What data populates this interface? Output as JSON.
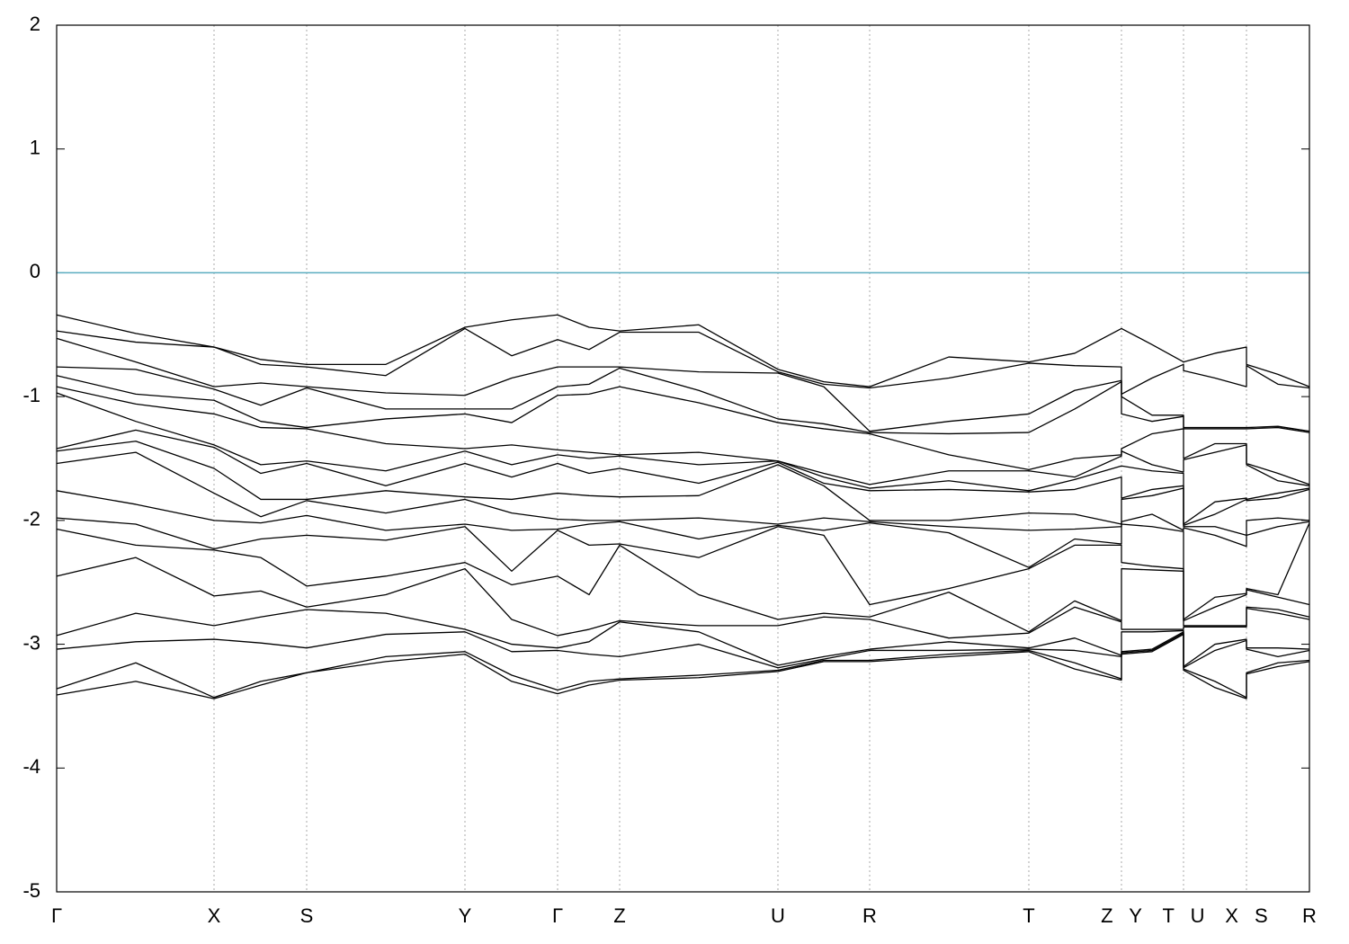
{
  "chart_data": {
    "type": "line",
    "x": [
      0,
      88,
      175,
      227,
      278,
      366,
      454,
      506,
      557,
      592,
      626,
      714,
      802,
      853,
      904,
      992,
      1081,
      1132,
      1184,
      1184,
      1218,
      1253,
      1253,
      1288,
      1323,
      1323,
      1358,
      1393
    ],
    "xlim": [
      0,
      1393
    ],
    "xticks": [
      {
        "value": 0,
        "label": "Γ"
      },
      {
        "value": 175,
        "label": "X"
      },
      {
        "value": 278,
        "label": "S"
      },
      {
        "value": 454,
        "label": "Y"
      },
      {
        "value": 557,
        "label": "Γ"
      },
      {
        "value": 626,
        "label": "Z"
      },
      {
        "value": 802,
        "label": "U"
      },
      {
        "value": 904,
        "label": "R"
      },
      {
        "value": 1081,
        "label": "T"
      },
      {
        "value": 1184,
        "label": "Z Y"
      },
      {
        "value": 1253,
        "label": "T U"
      },
      {
        "value": 1323,
        "label": "X S"
      },
      {
        "value": 1393,
        "label": "R"
      }
    ],
    "ylim": [
      -5,
      2
    ],
    "yticks": [
      -5,
      -4,
      -3,
      -2,
      -1,
      0,
      1,
      2
    ],
    "grid": true,
    "color": "#000000",
    "fermi_level": 0,
    "fermi_color": "#5aacbf",
    "series": [
      {
        "values": [
          -0.34,
          -0.49,
          -0.6,
          -0.7,
          -0.74,
          -0.74,
          -0.44,
          -0.38,
          -0.34,
          -0.44,
          -0.47,
          -0.42,
          -0.78,
          -0.88,
          -0.92,
          -0.68,
          -0.72,
          -0.65,
          -0.45,
          -0.45,
          -0.58,
          -0.72,
          -0.72,
          -0.65,
          -0.6,
          -0.74,
          -0.82,
          -0.92
        ]
      },
      {
        "values": [
          -0.47,
          -0.56,
          -0.6,
          -0.74,
          -0.76,
          -0.83,
          -0.45,
          -0.67,
          -0.54,
          -0.62,
          -0.48,
          -0.48,
          -0.8,
          -0.9,
          -0.93,
          -0.85,
          -0.73,
          -0.75,
          -0.76,
          -0.98,
          -0.85,
          -0.74,
          -0.79,
          -0.85,
          -0.92,
          -0.75,
          -0.9,
          -0.93
        ]
      },
      {
        "values": [
          -0.53,
          -0.72,
          -0.92,
          -0.89,
          -0.92,
          -0.97,
          -0.99,
          -0.85,
          -0.76,
          -0.76,
          -0.76,
          -0.8,
          -0.81,
          -0.92,
          -1.28,
          -1.2,
          -1.14,
          -0.95,
          -0.87,
          -1.0,
          -1.15,
          -1.15,
          -1.25,
          -1.25,
          -1.25,
          -1.25,
          -1.24,
          -1.28
        ]
      },
      {
        "values": [
          -0.76,
          -0.78,
          -0.94,
          -1.07,
          -0.93,
          -1.1,
          -1.1,
          -1.1,
          -0.92,
          -0.9,
          -0.77,
          -0.95,
          -1.18,
          -1.22,
          -1.29,
          -1.3,
          -1.29,
          -1.1,
          -0.88,
          -1.14,
          -1.2,
          -1.16,
          -1.26,
          -1.26,
          -1.26,
          -1.26,
          -1.25,
          -1.29
        ]
      },
      {
        "values": [
          -0.83,
          -0.98,
          -1.03,
          -1.2,
          -1.25,
          -1.18,
          -1.14,
          -1.21,
          -0.99,
          -0.98,
          -0.92,
          -1.05,
          -1.21,
          -1.26,
          -1.3,
          -1.47,
          -1.59,
          -1.5,
          -1.47,
          -1.42,
          -1.3,
          -1.26,
          -1.5,
          -1.38,
          -1.38,
          -1.54,
          -1.62,
          -1.71
        ]
      },
      {
        "values": [
          -0.92,
          -1.06,
          -1.14,
          -1.25,
          -1.26,
          -1.38,
          -1.42,
          -1.39,
          -1.43,
          -1.45,
          -1.47,
          -1.45,
          -1.52,
          -1.62,
          -1.71,
          -1.6,
          -1.6,
          -1.65,
          -1.48,
          -1.44,
          -1.55,
          -1.61,
          -1.51,
          -1.45,
          -1.39,
          -1.55,
          -1.68,
          -1.72
        ]
      },
      {
        "values": [
          -0.97,
          -1.2,
          -1.39,
          -1.55,
          -1.52,
          -1.6,
          -1.44,
          -1.55,
          -1.47,
          -1.5,
          -1.48,
          -1.55,
          -1.52,
          -1.65,
          -1.74,
          -1.68,
          -1.76,
          -1.67,
          -1.56,
          -1.56,
          -1.6,
          -1.62,
          -2.03,
          -1.85,
          -1.82,
          -1.83,
          -1.78,
          -1.74
        ]
      },
      {
        "values": [
          -1.42,
          -1.27,
          -1.41,
          -1.62,
          -1.54,
          -1.72,
          -1.54,
          -1.65,
          -1.54,
          -1.62,
          -1.58,
          -1.7,
          -1.53,
          -1.7,
          -1.76,
          -1.75,
          -1.77,
          -1.75,
          -1.65,
          -1.82,
          -1.75,
          -1.72,
          -2.04,
          -1.95,
          -1.83,
          -1.84,
          -1.82,
          -1.75
        ]
      },
      {
        "values": [
          -1.44,
          -1.36,
          -1.58,
          -1.83,
          -1.83,
          -1.76,
          -1.81,
          -1.83,
          -1.78,
          -1.8,
          -1.81,
          -1.8,
          -1.55,
          -1.72,
          -2.0,
          -2.0,
          -1.94,
          -1.95,
          -2.03,
          -1.83,
          -1.8,
          -1.74,
          -2.05,
          -2.05,
          -2.12,
          -2.0,
          -1.98,
          -2.0
        ]
      },
      {
        "values": [
          -1.54,
          -1.45,
          -1.78,
          -1.97,
          -1.84,
          -1.94,
          -1.83,
          -1.94,
          -1.99,
          -2.0,
          -2.0,
          -1.98,
          -2.03,
          -1.98,
          -2.01,
          -2.05,
          -2.08,
          -2.07,
          -2.05,
          -2.01,
          -1.95,
          -2.08,
          -2.06,
          -2.12,
          -2.21,
          -2.12,
          -2.05,
          -2.01
        ]
      },
      {
        "values": [
          -1.76,
          -1.87,
          -2.0,
          -2.02,
          -1.96,
          -2.08,
          -2.03,
          -2.08,
          -2.07,
          -2.03,
          -2.01,
          -2.15,
          -2.04,
          -2.08,
          -2.02,
          -2.1,
          -2.38,
          -2.15,
          -2.19,
          -2.03,
          -2.05,
          -2.09,
          -2.8,
          -2.62,
          -2.59,
          -2.55,
          -2.6,
          -2.02
        ]
      },
      {
        "values": [
          -1.98,
          -2.03,
          -2.23,
          -2.15,
          -2.12,
          -2.16,
          -2.05,
          -2.41,
          -2.08,
          -2.2,
          -2.19,
          -2.3,
          -2.05,
          -2.12,
          -2.68,
          -2.55,
          -2.39,
          -2.2,
          -2.2,
          -2.34,
          -2.37,
          -2.39,
          -2.81,
          -2.7,
          -2.6,
          -2.56,
          -2.62,
          -2.68
        ]
      },
      {
        "values": [
          -2.07,
          -2.2,
          -2.24,
          -2.3,
          -2.53,
          -2.45,
          -2.34,
          -2.52,
          -2.45,
          -2.6,
          -2.2,
          -2.6,
          -2.8,
          -2.75,
          -2.78,
          -2.58,
          -2.9,
          -2.65,
          -2.81,
          -2.39,
          -2.4,
          -2.41,
          -2.85,
          -2.85,
          -2.85,
          -2.7,
          -2.72,
          -2.78
        ]
      },
      {
        "values": [
          -2.45,
          -2.3,
          -2.61,
          -2.57,
          -2.7,
          -2.6,
          -2.39,
          -2.8,
          -2.93,
          -2.88,
          -2.81,
          -2.85,
          -2.85,
          -2.78,
          -2.8,
          -2.95,
          -2.91,
          -2.7,
          -2.82,
          -2.88,
          -2.88,
          -2.88,
          -2.86,
          -2.86,
          -2.86,
          -2.71,
          -2.75,
          -2.8
        ]
      },
      {
        "values": [
          -2.93,
          -2.75,
          -2.85,
          -2.78,
          -2.72,
          -2.75,
          -2.88,
          -3.0,
          -3.03,
          -2.98,
          -2.82,
          -2.9,
          -3.17,
          -3.1,
          -3.04,
          -2.98,
          -3.03,
          -2.95,
          -3.09,
          -2.9,
          -2.9,
          -2.89,
          -3.18,
          -3.0,
          -2.96,
          -3.03,
          -3.03,
          -3.04
        ]
      },
      {
        "values": [
          -3.04,
          -2.98,
          -2.96,
          -2.99,
          -3.03,
          -2.92,
          -2.9,
          -3.06,
          -3.05,
          -3.08,
          -3.1,
          -3.0,
          -3.19,
          -3.12,
          -3.05,
          -3.05,
          -3.04,
          -3.05,
          -3.1,
          -3.06,
          -3.04,
          -2.9,
          -3.19,
          -3.05,
          -2.97,
          -3.04,
          -3.1,
          -3.05
        ]
      },
      {
        "values": [
          -3.36,
          -3.15,
          -3.43,
          -3.3,
          -3.23,
          -3.1,
          -3.06,
          -3.25,
          -3.37,
          -3.3,
          -3.28,
          -3.25,
          -3.21,
          -3.13,
          -3.13,
          -3.08,
          -3.05,
          -3.15,
          -3.28,
          -3.07,
          -3.05,
          -2.91,
          -3.2,
          -3.3,
          -3.43,
          -3.23,
          -3.15,
          -3.13
        ]
      },
      {
        "values": [
          -3.41,
          -3.3,
          -3.44,
          -3.33,
          -3.23,
          -3.14,
          -3.08,
          -3.3,
          -3.4,
          -3.33,
          -3.29,
          -3.27,
          -3.22,
          -3.14,
          -3.14,
          -3.1,
          -3.06,
          -3.2,
          -3.29,
          -3.08,
          -3.06,
          -2.92,
          -3.21,
          -3.35,
          -3.44,
          -3.24,
          -3.18,
          -3.14
        ]
      }
    ]
  }
}
